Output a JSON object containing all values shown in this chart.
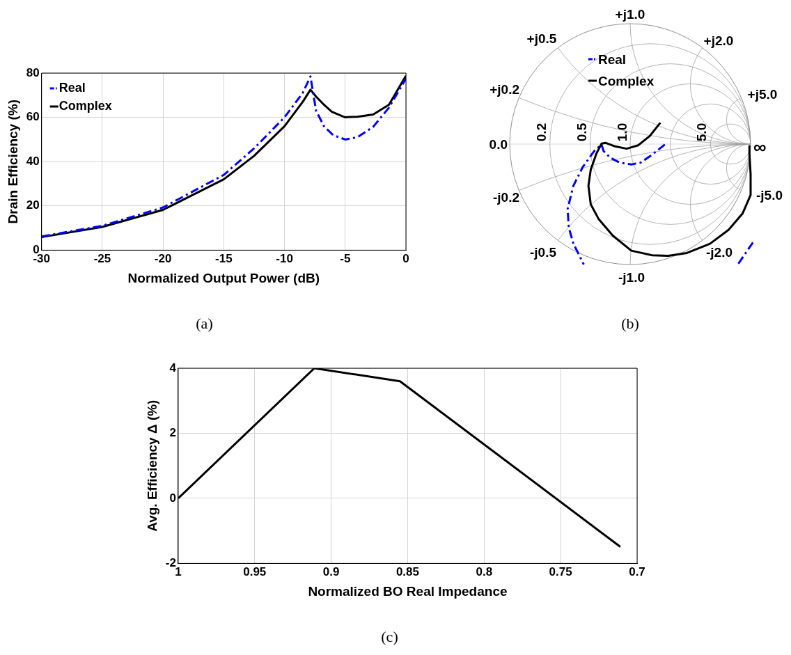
{
  "chart_data": [
    {
      "type": "line",
      "title": "(a)",
      "xlabel": "Normalized Output Power (dB)",
      "ylabel": "Drain Efficiency (%)",
      "xlim": [
        -30,
        0
      ],
      "xticks": [
        -30,
        -25,
        -20,
        -15,
        -10,
        -5,
        0
      ],
      "ylim": [
        0,
        80
      ],
      "yticks": [
        0,
        20,
        40,
        60,
        80
      ],
      "grid": true,
      "legend": "top left",
      "marker": "none",
      "series": [
        {
          "name": "Real",
          "color": "#0000ff",
          "line_style": "dashed",
          "x": [
            -30,
            -25,
            -20,
            -15,
            -12.5,
            -10,
            -8.5,
            -7.86,
            -7.4,
            -6.75,
            -6,
            -5,
            -4,
            -2.7,
            -1.4,
            0
          ],
          "values": [
            6.2,
            11,
            19.3,
            34,
            46,
            60,
            71,
            78.5,
            63,
            56,
            52,
            50,
            51,
            55.7,
            64.4,
            77.5
          ]
        },
        {
          "name": "Complex",
          "color": "#000000",
          "line_style": "solid",
          "x": [
            -30,
            -25,
            -20,
            -15,
            -12.5,
            -10,
            -8.5,
            -7.86,
            -7.4,
            -6.75,
            -6.1,
            -5,
            -4,
            -2.7,
            -1.4,
            0
          ],
          "values": [
            5.9,
            10.5,
            18.2,
            32,
            42.6,
            56,
            67,
            72.5,
            69.4,
            65.7,
            62.5,
            60,
            60.3,
            61.3,
            65.7,
            78.8
          ]
        }
      ]
    },
    {
      "type": "other",
      "title": "(b)",
      "annotations": [
        "+j1.0",
        "+j0.5",
        "+j2.0",
        "+j0.2",
        "+j5.0",
        "0.0",
        "0.2",
        "0.5",
        "1.0",
        "5.0",
        "∞",
        "-j0.2",
        "-j5.0",
        "-j0.5",
        "-j2.0",
        "-j1.0",
        "Real",
        "Complex"
      ]
    },
    {
      "type": "line",
      "title": "(c)",
      "xlabel": "Normalized BO Real Impedance",
      "ylabel": "Avg. Efficiency Δ (%)",
      "xlim": [
        1,
        0.7
      ],
      "xticks": [
        1,
        0.95,
        0.9,
        0.85,
        0.8,
        0.75,
        0.7
      ],
      "ylim": [
        -2,
        4
      ],
      "yticks": [
        -2,
        0,
        2,
        4
      ],
      "grid": true,
      "marker": "none",
      "line_style": "solid",
      "series": [
        {
          "color": "#000000",
          "x": [
            1,
            0.911,
            0.855,
            0.711
          ],
          "values": [
            0,
            4,
            3.6,
            -1.49
          ]
        }
      ]
    }
  ]
}
